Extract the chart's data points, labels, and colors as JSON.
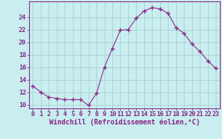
{
  "x": [
    0,
    1,
    2,
    3,
    4,
    5,
    6,
    7,
    8,
    9,
    10,
    11,
    12,
    13,
    14,
    15,
    16,
    17,
    18,
    19,
    20,
    21,
    22,
    23
  ],
  "y": [
    13,
    12,
    11.2,
    11,
    10.8,
    10.8,
    10.8,
    9.9,
    11.8,
    16,
    19,
    21.9,
    22,
    23.8,
    25.0,
    25.5,
    25.3,
    24.6,
    22.3,
    21.4,
    19.7,
    18.5,
    17,
    15.8
  ],
  "line_color": "#882288",
  "marker": "+",
  "marker_size": 4,
  "background_color": "#c8eef0",
  "grid_color": "#aacccc",
  "xlabel": "Windchill (Refroidissement éolien,°C)",
  "xlabel_fontsize": 7,
  "ylabel_ticks": [
    10,
    12,
    14,
    16,
    18,
    20,
    22,
    24
  ],
  "xlim": [
    -0.5,
    23.5
  ],
  "ylim": [
    9.4,
    26.5
  ],
  "tick_fontsize": 6.5,
  "axis_color": "#882288",
  "tick_color": "#882288",
  "spine_color": "#882288"
}
